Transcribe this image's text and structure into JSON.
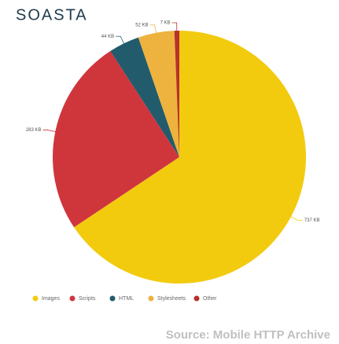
{
  "logo": "SOASTA",
  "source": "Source: Mobile HTTP Archive",
  "chart_data": {
    "type": "pie",
    "categories": [
      "Images",
      "Scripts",
      "HTML",
      "Stylesheets",
      "Other"
    ],
    "values": [
      737,
      283,
      44,
      52,
      7
    ],
    "value_labels": [
      "737 KB",
      "283 KB",
      "44 KB",
      "52 KB",
      "7 KB"
    ],
    "colors": [
      "#f2cb0f",
      "#cf363c",
      "#215b6c",
      "#eeb23e",
      "#b8312b"
    ],
    "legend": "bottom"
  }
}
